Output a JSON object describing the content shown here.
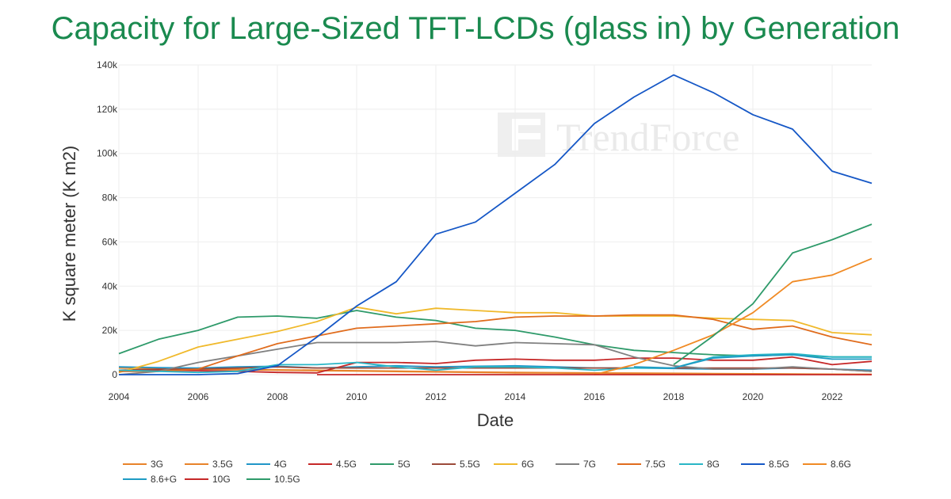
{
  "chart_data": {
    "type": "line",
    "title": "Capacity for Large-Sized TFT-LCDs (glass in) by Generation",
    "xlabel": "Date",
    "ylabel": "K square meter (K m2)",
    "xlim": [
      2004,
      2023
    ],
    "ylim": [
      0,
      140000
    ],
    "x_ticks": [
      2004,
      2006,
      2008,
      2010,
      2012,
      2014,
      2016,
      2018,
      2020,
      2022
    ],
    "x_tick_labels": [
      "2004",
      "2006",
      "2008",
      "2010",
      "2012",
      "2014",
      "2016",
      "2018",
      "2020",
      "2022"
    ],
    "y_ticks": [
      0,
      20000,
      40000,
      60000,
      80000,
      100000,
      120000,
      140000
    ],
    "y_tick_labels": [
      "0",
      "20k",
      "40k",
      "60k",
      "80k",
      "100k",
      "120k",
      "140k"
    ],
    "grid": true,
    "legend_position": "bottom",
    "watermark": "TrendForce",
    "series": [
      {
        "name": "3G",
        "color": "#e8832a",
        "x": [
          2004,
          2005,
          2006,
          2007,
          2008,
          2009,
          2010,
          2011,
          2012,
          2013,
          2014,
          2015,
          2016,
          2017,
          2018,
          2019,
          2020,
          2021,
          2022,
          2023
        ],
        "values": [
          3000,
          2800,
          2600,
          2400,
          2200,
          2000,
          1800,
          1600,
          1400,
          1200,
          1000,
          900,
          800,
          700,
          600,
          500,
          400,
          300,
          200,
          100
        ]
      },
      {
        "name": "3.5G",
        "color": "#e8832a",
        "x": [
          2004,
          2005,
          2006,
          2007,
          2008,
          2009,
          2010,
          2011,
          2012,
          2013,
          2014,
          2015,
          2016,
          2017,
          2018,
          2019,
          2020,
          2021,
          2022,
          2023
        ],
        "values": [
          1500,
          2000,
          2500,
          2200,
          2000,
          1800,
          1600,
          1400,
          1200,
          1000,
          800,
          700,
          600,
          500,
          400,
          300,
          250,
          200,
          150,
          100
        ]
      },
      {
        "name": "4G",
        "color": "#2196c8",
        "x": [
          2004,
          2005,
          2006,
          2007,
          2008,
          2009,
          2010,
          2011,
          2012,
          2013,
          2014,
          2015,
          2016,
          2017,
          2018,
          2019,
          2020,
          2021,
          2022,
          2023
        ],
        "values": [
          3500,
          3200,
          3000,
          3500,
          3800,
          3000,
          3500,
          4000,
          3500,
          3800,
          4000,
          3500,
          3000,
          3000,
          2800,
          2500,
          2500,
          3000,
          2500,
          2000
        ]
      },
      {
        "name": "4.5G",
        "color": "#c62828",
        "x": [
          2004,
          2005,
          2006,
          2007,
          2008,
          2009,
          2010,
          2011,
          2012,
          2013,
          2014,
          2015,
          2016,
          2017,
          2018,
          2019,
          2020,
          2021,
          2022,
          2023
        ],
        "values": [
          2000,
          2000,
          1800,
          1500,
          1000,
          800,
          5500,
          5500,
          5000,
          6500,
          7000,
          6500,
          6500,
          7500,
          7500,
          6500,
          6500,
          8000,
          4500,
          6000
        ]
      },
      {
        "name": "5G",
        "color": "#2e9a6a",
        "x": [
          2004,
          2005,
          2006,
          2007,
          2008,
          2009,
          2010,
          2011,
          2012,
          2013,
          2014,
          2015,
          2016,
          2017,
          2018,
          2019,
          2020,
          2021,
          2022,
          2023
        ],
        "values": [
          9500,
          16000,
          20000,
          26000,
          26500,
          25500,
          29000,
          26000,
          24500,
          21000,
          20000,
          17000,
          13500,
          11000,
          10000,
          9000,
          8500,
          9000,
          8000,
          8000
        ]
      },
      {
        "name": "5.5G",
        "color": "#9c4a3a",
        "x": [
          2004,
          2005,
          2006,
          2007,
          2008,
          2009,
          2010,
          2011,
          2012,
          2013,
          2014,
          2015,
          2016,
          2017,
          2018,
          2019,
          2020,
          2021,
          2022,
          2023
        ],
        "values": [
          2000,
          2500,
          2500,
          3000,
          3500,
          3000,
          3000,
          3000,
          3000,
          3000,
          3000,
          3000,
          3000,
          3000,
          3000,
          3000,
          3000,
          3000,
          2500,
          1500
        ]
      },
      {
        "name": "6G",
        "color": "#f0b92b",
        "x": [
          2004,
          2005,
          2006,
          2007,
          2008,
          2009,
          2010,
          2011,
          2012,
          2013,
          2014,
          2015,
          2016,
          2017,
          2018,
          2019,
          2020,
          2021,
          2022,
          2023
        ],
        "values": [
          1000,
          6000,
          12500,
          16000,
          19500,
          24000,
          30500,
          27500,
          30000,
          29000,
          28000,
          28000,
          26500,
          26500,
          26500,
          25500,
          25000,
          24500,
          19000,
          18000
        ]
      },
      {
        "name": "7G",
        "color": "#808080",
        "x": [
          2004,
          2005,
          2006,
          2007,
          2008,
          2009,
          2010,
          2011,
          2012,
          2013,
          2014,
          2015,
          2016,
          2017,
          2018,
          2019,
          2020,
          2021,
          2022,
          2023
        ],
        "values": [
          0,
          1500,
          5500,
          8500,
          11500,
          14500,
          14500,
          14500,
          15000,
          13000,
          14500,
          14000,
          13500,
          8000,
          4000,
          2500,
          2500,
          3500,
          2500,
          1500
        ]
      },
      {
        "name": "7.5G",
        "color": "#e06c1d",
        "x": [
          2004,
          2005,
          2006,
          2007,
          2008,
          2009,
          2010,
          2011,
          2012,
          2013,
          2014,
          2015,
          2016,
          2017,
          2018,
          2019,
          2020,
          2021,
          2022,
          2023
        ],
        "values": [
          1500,
          1500,
          2500,
          8500,
          14000,
          17500,
          21000,
          22000,
          23000,
          24000,
          26000,
          26500,
          26500,
          27000,
          27000,
          25000,
          20500,
          22000,
          17000,
          13500
        ]
      },
      {
        "name": "8G",
        "color": "#29b6c6",
        "x": [
          2004,
          2005,
          2006,
          2007,
          2008,
          2009,
          2010,
          2011,
          2012,
          2013,
          2014,
          2015,
          2016,
          2017,
          2018,
          2019,
          2020,
          2021,
          2022,
          2023
        ],
        "values": [
          2000,
          1500,
          1000,
          1500,
          4500,
          4500,
          5500,
          3500,
          2000,
          3500,
          3500,
          3000,
          2000,
          3000,
          3000,
          8000,
          9000,
          9500,
          8000,
          8000
        ]
      },
      {
        "name": "8.5G",
        "color": "#1557c6",
        "x": [
          2004,
          2005,
          2006,
          2007,
          2008,
          2009,
          2010,
          2011,
          2012,
          2013,
          2014,
          2015,
          2016,
          2017,
          2018,
          2019,
          2020,
          2021,
          2022,
          2023
        ],
        "values": [
          0,
          0,
          0,
          500,
          4000,
          17000,
          31000,
          42000,
          63500,
          69000,
          82000,
          95000,
          113500,
          125500,
          135500,
          127500,
          117500,
          111000,
          92000,
          86500
        ]
      },
      {
        "name": "8.6G",
        "color": "#f08a24",
        "x": [
          2016,
          2017,
          2018,
          2019,
          2020,
          2021,
          2022,
          2023
        ],
        "values": [
          0,
          4500,
          11000,
          18000,
          28000,
          42000,
          45000,
          52500
        ]
      },
      {
        "name": "8.6+G",
        "color": "#1e9bc4",
        "x": [
          2017,
          2018,
          2019,
          2020,
          2021,
          2022,
          2023
        ],
        "values": [
          3500,
          3000,
          7500,
          8500,
          9000,
          7000,
          7000
        ]
      },
      {
        "name": "10G",
        "color": "#c62828",
        "x": [
          2009,
          2010,
          2011,
          2012,
          2013,
          2014,
          2015,
          2016,
          2017,
          2018,
          2019,
          2020,
          2021,
          2022,
          2023
        ],
        "values": [
          0,
          0,
          0,
          0,
          0,
          0,
          0,
          0,
          0,
          0,
          0,
          0,
          0,
          0,
          0
        ]
      },
      {
        "name": "10.5G",
        "color": "#2e9a6a",
        "x": [
          2018,
          2019,
          2020,
          2021,
          2022,
          2023
        ],
        "values": [
          4500,
          17500,
          32000,
          55000,
          61000,
          68000
        ]
      }
    ]
  }
}
